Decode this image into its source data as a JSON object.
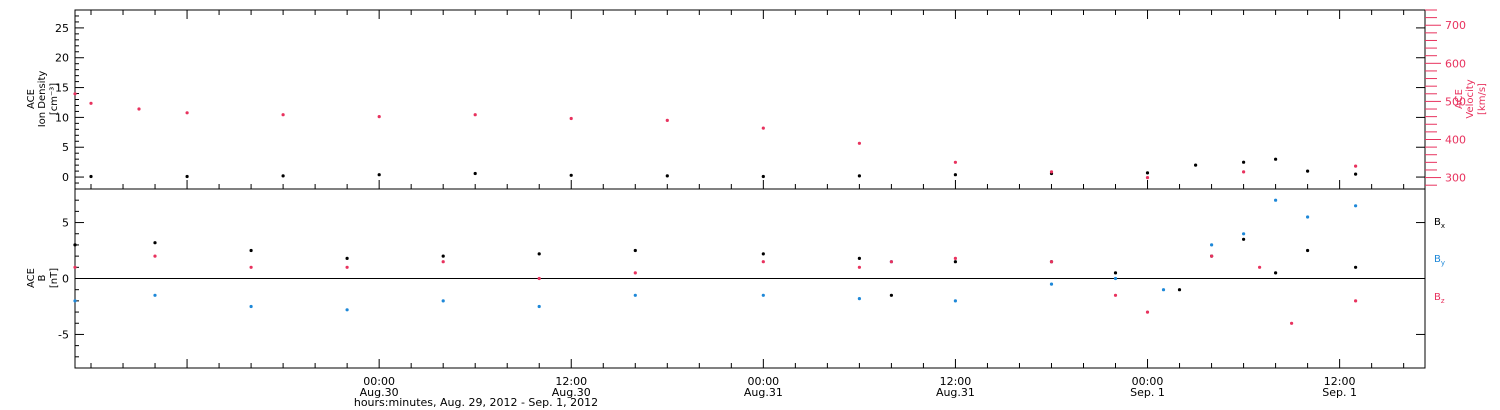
{
  "colors": {
    "density": "#000000",
    "velocity": "#e8325e",
    "bx": "#000000",
    "by": "#1e88d8",
    "bz": "#e8325e",
    "axis": "#000000"
  },
  "chart_data": [
    {
      "type": "scatter",
      "panel": "plasma",
      "ylabel_left": [
        "ACE",
        "Ion Density",
        "[cm⁻³]"
      ],
      "ylabel_right": [
        "ACE",
        "Velocity",
        "[km/s]"
      ],
      "x_range": [
        "2012-08-29 05:00",
        "2012-09-01 17:20"
      ],
      "ylim_left": [
        -2,
        28
      ],
      "yticks_left": [
        "25",
        "20",
        "15",
        "10",
        "5",
        "0"
      ],
      "ylim_right": [
        270,
        740
      ],
      "yticks_right": [
        "700",
        "600",
        "500",
        "400",
        "300"
      ],
      "series": [
        {
          "axis": "left",
          "x": [
            "08-29 06:00",
            "08-29 12:00",
            "08-29 18:00",
            "08-30 00:00",
            "08-30 06:00",
            "08-30 12:00",
            "08-30 18:00",
            "08-31 00:00",
            "08-31 06:00",
            "08-31 12:00",
            "08-31 18:00",
            "09-01 00:00",
            "09-01 03:00",
            "09-01 06:00",
            "09-01 08:00",
            "09-01 10:00",
            "09-01 13:00"
          ],
          "y": [
            0.1,
            0.1,
            0.2,
            0.4,
            0.6,
            0.3,
            0.2,
            0.1,
            0.2,
            0.4,
            0.6,
            0.7,
            2.0,
            2.5,
            3.0,
            1.0,
            0.5
          ]
        },
        {
          "axis": "right",
          "x": [
            "08-29 05:00",
            "08-29 06:00",
            "08-29 09:00",
            "08-29 12:00",
            "08-29 18:00",
            "08-30 00:00",
            "08-30 06:00",
            "08-30 12:00",
            "08-30 18:00",
            "08-31 00:00",
            "08-31 06:00",
            "08-31 12:00",
            "08-31 18:00",
            "09-01 00:00",
            "09-01 06:00",
            "09-01 13:00"
          ],
          "y": [
            520,
            495,
            480,
            470,
            465,
            460,
            465,
            455,
            450,
            430,
            390,
            340,
            315,
            300,
            315,
            330
          ]
        }
      ]
    },
    {
      "type": "scatter",
      "panel": "magnetic",
      "ylabel_left": [
        "ACE",
        "B",
        "[nT]"
      ],
      "x_range": [
        "2012-08-29 05:00",
        "2012-09-01 17:20"
      ],
      "ylim": [
        -8,
        8
      ],
      "yticks": [
        "5",
        "0",
        "-5"
      ],
      "xticks": [
        {
          "time": "00:00",
          "date": "Aug.30"
        },
        {
          "time": "12:00",
          "date": "Aug.30"
        },
        {
          "time": "00:00",
          "date": "Aug.31"
        },
        {
          "time": "12:00",
          "date": "Aug.31"
        },
        {
          "time": "00:00",
          "date": "Sep. 1"
        },
        {
          "time": "12:00",
          "date": "Sep. 1"
        }
      ],
      "xlabel": "hours:minutes, Aug. 29, 2012 - Sep.  1, 2012",
      "series": [
        {
          "name": "B",
          "subscript": "x",
          "x": [
            "08-29 05:00",
            "08-29 10:00",
            "08-29 16:00",
            "08-29 22:00",
            "08-30 04:00",
            "08-30 10:00",
            "08-30 16:00",
            "08-31 00:00",
            "08-31 06:00",
            "08-31 08:00",
            "08-31 12:00",
            "08-31 18:00",
            "08-31 22:00",
            "09-01 02:00",
            "09-01 04:00",
            "09-01 06:00",
            "09-01 08:00",
            "09-01 10:00",
            "09-01 13:00"
          ],
          "y": [
            3.0,
            3.2,
            2.5,
            1.8,
            2.0,
            2.2,
            2.5,
            2.2,
            1.8,
            -1.5,
            1.5,
            1.5,
            0.5,
            -1.0,
            2.0,
            3.5,
            0.5,
            2.5,
            1.0
          ]
        },
        {
          "name": "B",
          "subscript": "y",
          "x": [
            "08-29 05:00",
            "08-29 10:00",
            "08-29 16:00",
            "08-29 22:00",
            "08-30 04:00",
            "08-30 10:00",
            "08-30 16:00",
            "08-31 00:00",
            "08-31 06:00",
            "08-31 08:00",
            "08-31 12:00",
            "08-31 18:00",
            "08-31 22:00",
            "09-01 01:00",
            "09-01 04:00",
            "09-01 06:00",
            "09-01 08:00",
            "09-01 10:00",
            "09-01 13:00"
          ],
          "y": [
            -2.0,
            -1.5,
            -2.5,
            -2.8,
            -2.0,
            -2.5,
            -1.5,
            -1.5,
            -1.8,
            1.5,
            -2.0,
            -0.5,
            0.0,
            -1.0,
            3.0,
            4.0,
            7.0,
            5.5,
            6.5
          ]
        },
        {
          "name": "B",
          "subscript": "z",
          "x": [
            "08-29 05:00",
            "08-29 10:00",
            "08-29 16:00",
            "08-29 22:00",
            "08-30 04:00",
            "08-30 10:00",
            "08-30 16:00",
            "08-31 00:00",
            "08-31 06:00",
            "08-31 08:00",
            "08-31 12:00",
            "08-31 18:00",
            "08-31 22:00",
            "09-01 00:00",
            "09-01 04:00",
            "09-01 07:00",
            "09-01 09:00",
            "09-01 13:00"
          ],
          "y": [
            1.0,
            2.0,
            1.0,
            1.0,
            1.5,
            0.0,
            0.5,
            1.5,
            1.0,
            1.5,
            1.8,
            1.5,
            -1.5,
            -3.0,
            2.0,
            1.0,
            -4.0,
            -2.0
          ]
        }
      ]
    }
  ]
}
